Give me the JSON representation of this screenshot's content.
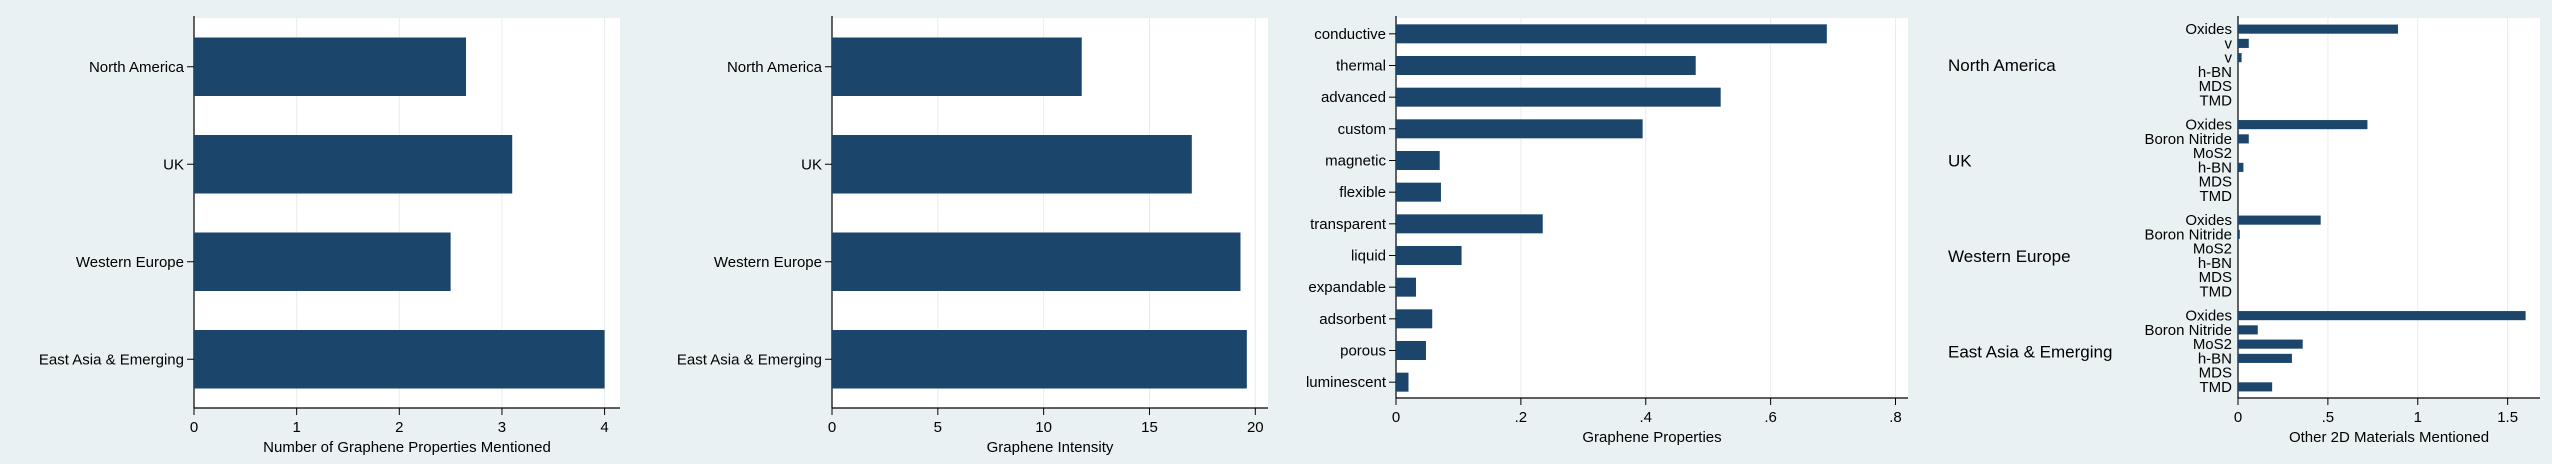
{
  "colors": {
    "bar": "#1c456b",
    "background": "#eaf1f3",
    "plot_bg": "#ffffff",
    "grid": "#e8ecee"
  },
  "chart_data": [
    {
      "type": "bar",
      "orientation": "horizontal",
      "categories": [
        "North America",
        "UK",
        "Western Europe",
        "East Asia & Emerging"
      ],
      "values": [
        2.65,
        3.1,
        2.5,
        4.0
      ],
      "xlabel": "Number of Graphene Properties Mentioned",
      "xlim": [
        0,
        4.15
      ],
      "xticks": [
        "0",
        "1",
        "2",
        "3",
        "4"
      ],
      "grid": true
    },
    {
      "type": "bar",
      "orientation": "horizontal",
      "categories": [
        "North America",
        "UK",
        "Western Europe",
        "East Asia & Emerging"
      ],
      "values": [
        11.8,
        17.0,
        19.3,
        19.6
      ],
      "xlabel": "Graphene Intensity",
      "xlim": [
        0,
        20.6
      ],
      "xticks": [
        "0",
        "5",
        "10",
        "15",
        "20"
      ],
      "grid": true
    },
    {
      "type": "bar",
      "orientation": "horizontal",
      "categories": [
        "conductive",
        "thermal",
        "advanced",
        "custom",
        "magnetic",
        "flexible",
        "transparent",
        "liquid",
        "expandable",
        "adsorbent",
        "porous",
        "luminescent"
      ],
      "values": [
        0.69,
        0.48,
        0.52,
        0.395,
        0.07,
        0.072,
        0.235,
        0.105,
        0.032,
        0.058,
        0.048,
        0.02
      ],
      "xlabel": "Graphene Properties",
      "xlim": [
        0,
        0.82
      ],
      "xticks": [
        "0",
        ".2",
        ".4",
        ".6",
        ".8"
      ],
      "grid": true
    },
    {
      "type": "bar",
      "orientation": "horizontal",
      "grouped": true,
      "groups": [
        {
          "name": "North America",
          "labels": [
            "Oxides",
            "v",
            "v",
            "h-BN",
            "MDS",
            "TMD"
          ],
          "values": [
            0.89,
            0.06,
            0.02,
            0.0,
            0.0,
            0.0
          ]
        },
        {
          "name": "UK",
          "labels": [
            "Oxides",
            "Boron Nitride",
            "MoS2",
            "h-BN",
            "MDS",
            "TMD"
          ],
          "values": [
            0.72,
            0.06,
            0.0,
            0.03,
            0.0,
            0.0
          ]
        },
        {
          "name": "Western Europe",
          "labels": [
            "Oxides",
            "Boron Nitride",
            "MoS2",
            "h-BN",
            "MDS",
            "TMD"
          ],
          "values": [
            0.46,
            0.01,
            0.0,
            0.0,
            0.0,
            0.0
          ]
        },
        {
          "name": "East Asia & Emerging",
          "labels": [
            "Oxides",
            "Boron Nitride",
            "MoS2",
            "h-BN",
            "MDS",
            "TMD"
          ],
          "values": [
            1.6,
            0.11,
            0.36,
            0.3,
            0.0,
            0.19
          ]
        }
      ],
      "xlabel": "Other 2D Materials Mentioned",
      "xlim": [
        0,
        1.68
      ],
      "xticks": [
        "0",
        ".5",
        "1",
        "1.5"
      ],
      "grid": true
    }
  ]
}
